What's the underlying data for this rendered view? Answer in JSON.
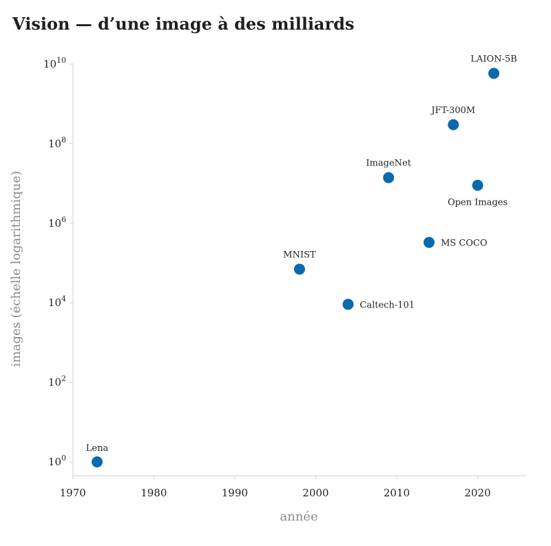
{
  "chart_data": {
    "type": "scatter",
    "title": "Vision — d’une image à des milliards",
    "xlabel": "année",
    "ylabel": "images (échelle logarithmique)",
    "xlim": [
      1970,
      2026
    ],
    "ylim": [
      1.0,
      10000000000.0
    ],
    "y_scale": "log",
    "x_ticks": [
      1970,
      1980,
      1990,
      2000,
      2010,
      2020
    ],
    "y_ticks": [
      {
        "base": "10",
        "exp": "0"
      },
      {
        "base": "10",
        "exp": "2"
      },
      {
        "base": "10",
        "exp": "4"
      },
      {
        "base": "10",
        "exp": "6"
      },
      {
        "base": "10",
        "exp": "8"
      },
      {
        "base": "10",
        "exp": "10"
      }
    ],
    "grid": false,
    "point_color": "#0a6aad",
    "points": [
      {
        "label": "Lena",
        "x": 1973,
        "y": 1
      },
      {
        "label": "MNIST",
        "x": 1998,
        "y": 70000
      },
      {
        "label": "Caltech-101",
        "x": 2004,
        "y": 9146
      },
      {
        "label": "ImageNet",
        "x": 2009,
        "y": 14000000
      },
      {
        "label": "MS COCO",
        "x": 2014,
        "y": 330000
      },
      {
        "label": "JFT-300M",
        "x": 2017,
        "y": 300000000
      },
      {
        "label": "Open Images",
        "x": 2020,
        "y": 9000000
      },
      {
        "label": "LAION-5B",
        "x": 2022,
        "y": 5850000000
      }
    ]
  }
}
